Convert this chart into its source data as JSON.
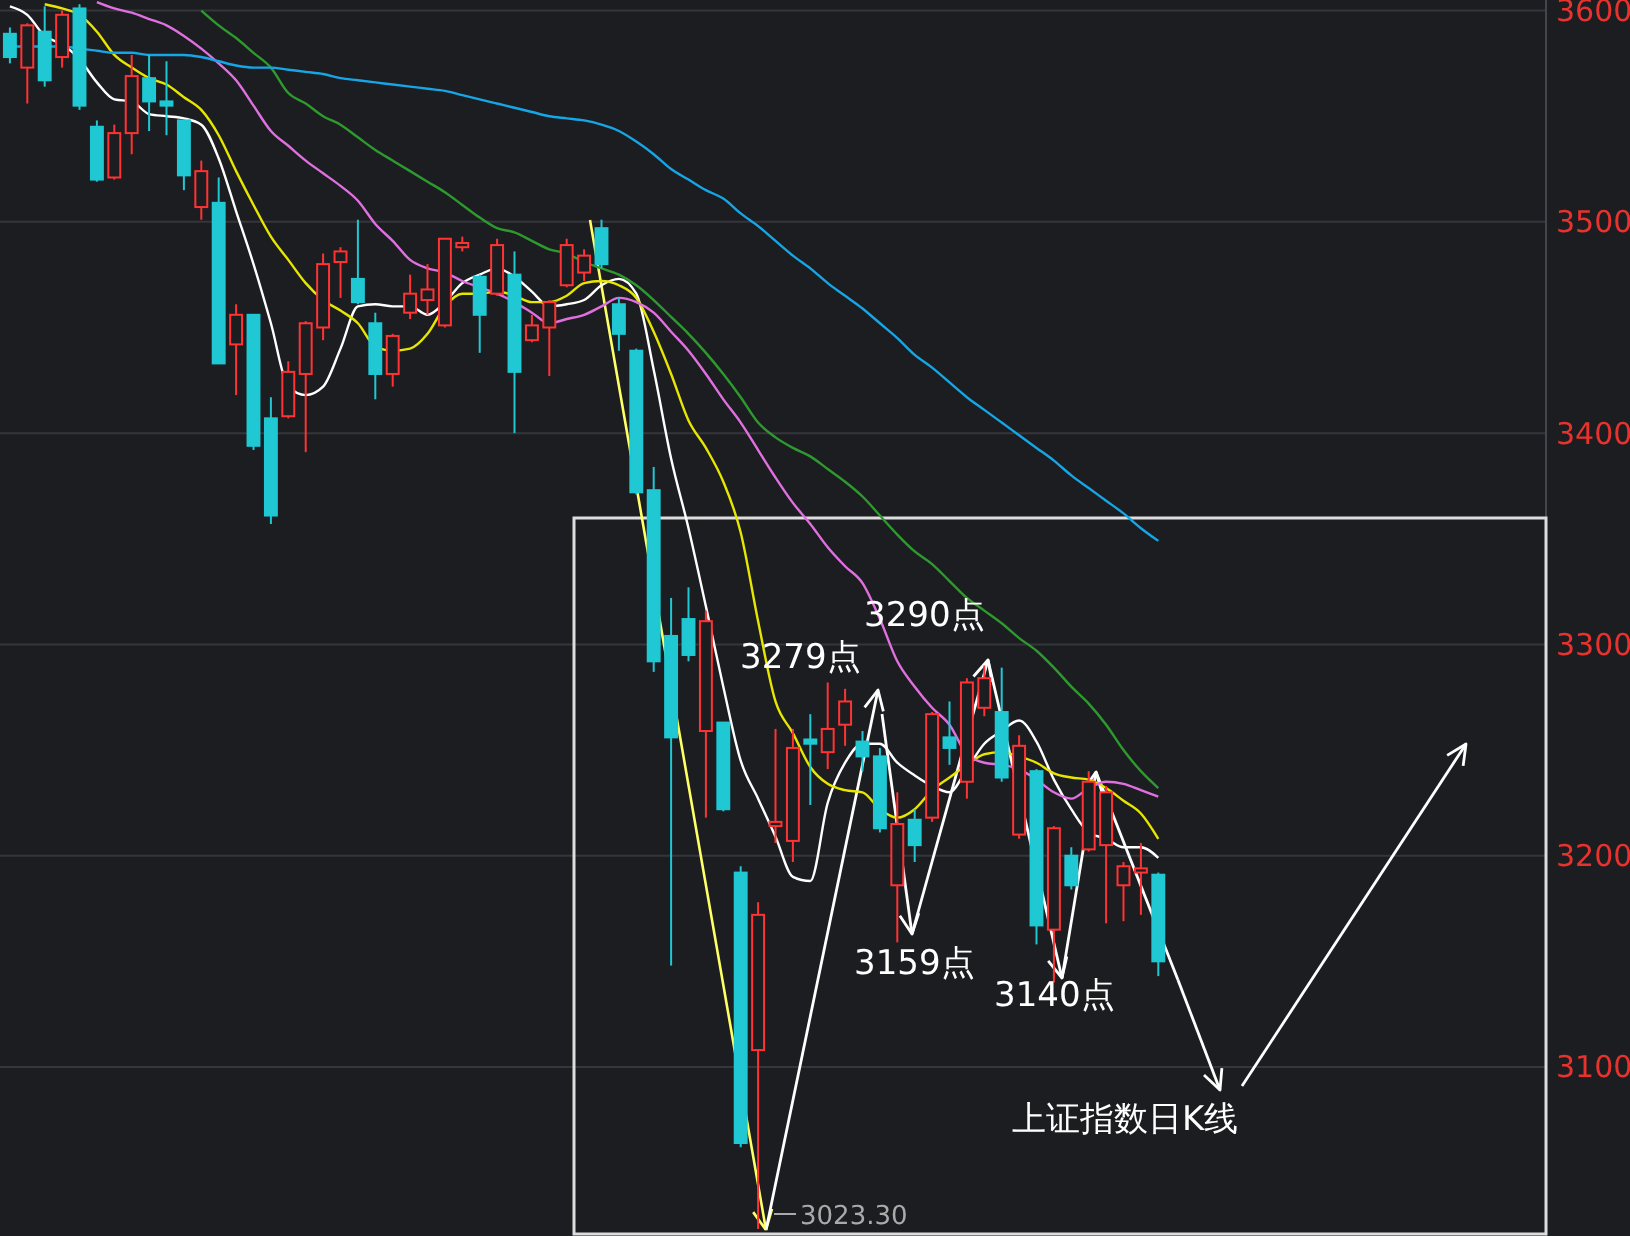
{
  "chart_data": {
    "type": "candlestick",
    "categories": [
      null,
      null,
      null,
      null,
      null,
      null,
      null,
      null,
      null,
      null,
      null,
      null,
      null,
      null,
      null,
      null,
      null,
      null,
      null,
      null,
      null,
      null,
      null,
      null,
      null,
      null,
      null,
      null,
      null,
      null,
      null,
      null,
      null,
      null,
      null,
      null,
      null,
      null,
      null,
      null,
      null,
      null,
      null,
      null,
      null,
      null,
      null,
      null,
      null,
      null,
      null,
      null,
      null,
      null,
      null,
      null,
      null,
      null,
      null,
      null,
      null,
      null,
      null,
      null,
      null,
      null,
      null
    ],
    "ohlc": [
      [
        3589,
        3592,
        3575,
        3578
      ],
      [
        3573,
        3594,
        3556,
        3593
      ],
      [
        3590,
        3602,
        3564,
        3567
      ],
      [
        3578,
        3600,
        3573,
        3598
      ],
      [
        3601,
        3603,
        3553,
        3555
      ],
      [
        3545,
        3548,
        3519,
        3520
      ],
      [
        3521,
        3546,
        3520,
        3542
      ],
      [
        3542,
        3579,
        3532,
        3569
      ],
      [
        3568,
        3579,
        3543,
        3557
      ],
      [
        3557,
        3576,
        3541,
        3555
      ],
      [
        3548,
        3548,
        3515,
        3522
      ],
      [
        3507,
        3529,
        3501,
        3524
      ],
      [
        3509,
        3521,
        3433,
        3433
      ],
      [
        3442,
        3461,
        3418,
        3456
      ],
      [
        3456,
        3456,
        3392,
        3394
      ],
      [
        3407,
        3417,
        3357,
        3361
      ],
      [
        3408,
        3434,
        3407,
        3429
      ],
      [
        3428,
        3453,
        3391,
        3452
      ],
      [
        3450,
        3485,
        3444,
        3480
      ],
      [
        3481,
        3488,
        3464,
        3486
      ],
      [
        3473,
        3501,
        3461,
        3462
      ],
      [
        3452,
        3457,
        3416,
        3428
      ],
      [
        3428,
        3447,
        3422,
        3446
      ],
      [
        3457,
        3475,
        3454,
        3466
      ],
      [
        3463,
        3480,
        3456,
        3468
      ],
      [
        3451,
        3492,
        3450,
        3492
      ],
      [
        3488,
        3493,
        3486,
        3490
      ],
      [
        3474,
        3475,
        3438,
        3456
      ],
      [
        3466,
        3492,
        3465,
        3489
      ],
      [
        3475,
        3486,
        3400,
        3429
      ],
      [
        3444,
        3456,
        3443,
        3451
      ],
      [
        3450,
        3463,
        3427,
        3462
      ],
      [
        3470,
        3492,
        3469,
        3489
      ],
      [
        3476,
        3487,
        3472,
        3484
      ],
      [
        3497,
        3501,
        3478,
        3480
      ],
      [
        3461,
        3464,
        3439,
        3447
      ],
      [
        3439,
        3440,
        3371,
        3372
      ],
      [
        3373,
        3384,
        3287,
        3292
      ],
      [
        3304,
        3322,
        3148,
        3256
      ],
      [
        3312,
        3327,
        3292,
        3295
      ],
      [
        3259,
        3316,
        3218,
        3311
      ],
      [
        3263,
        3263,
        3221,
        3222
      ],
      [
        3192,
        3195,
        3062,
        3064
      ],
      [
        3108,
        3178,
        3023.3,
        3172
      ],
      [
        3214,
        3260,
        3206,
        3216
      ],
      [
        3207,
        3260,
        3197,
        3251
      ],
      [
        3255,
        3267,
        3224,
        3253
      ],
      [
        3249,
        3282,
        3241,
        3260
      ],
      [
        3262,
        3279,
        3252,
        3273
      ],
      [
        3254,
        3259,
        3240,
        3247
      ],
      [
        3247,
        3251,
        3211,
        3213
      ],
      [
        3186,
        3230,
        3159,
        3215
      ],
      [
        3217,
        3222,
        3197,
        3205
      ],
      [
        3218,
        3268,
        3216,
        3267
      ],
      [
        3256,
        3273,
        3243,
        3251
      ],
      [
        3235,
        3284,
        3227,
        3282
      ],
      [
        3270,
        3290,
        3266,
        3284
      ],
      [
        3268,
        3289,
        3235,
        3237
      ],
      [
        3210,
        3257,
        3208,
        3252
      ],
      [
        3240,
        3241,
        3158,
        3167
      ],
      [
        3165,
        3214,
        3140,
        3213
      ],
      [
        3200,
        3204,
        3184,
        3186
      ],
      [
        3203,
        3240,
        3202,
        3235
      ],
      [
        3205,
        3233,
        3168,
        3230
      ],
      [
        3186,
        3197,
        3169,
        3195
      ],
      [
        3192,
        3206,
        3172,
        3194
      ],
      [
        3191,
        3192,
        3143,
        3150
      ]
    ],
    "colors": [
      "#1fc8d3",
      "#ff3333",
      "#1fc8d3",
      "#ff3333",
      "#1fc8d3",
      "#1fc8d3",
      "#ff3333",
      "#ff3333",
      "#1fc8d3",
      "#1fc8d3",
      "#1fc8d3",
      "#ff3333",
      "#1fc8d3",
      "#ff3333",
      "#1fc8d3",
      "#1fc8d3",
      "#ff3333",
      "#ff3333",
      "#ff3333",
      "#ff3333",
      "#1fc8d3",
      "#1fc8d3",
      "#ff3333",
      "#ff3333",
      "#ff3333",
      "#ff3333",
      "#ff3333",
      "#1fc8d3",
      "#ff3333",
      "#1fc8d3",
      "#ff3333",
      "#ff3333",
      "#ff3333",
      "#ff3333",
      "#1fc8d3",
      "#1fc8d3",
      "#1fc8d3",
      "#1fc8d3",
      "#1fc8d3",
      "#1fc8d3",
      "#ff3333",
      "#1fc8d3",
      "#1fc8d3",
      "#ff3333",
      "#ff3333",
      "#ff3333",
      "#1fc8d3",
      "#ff3333",
      "#ff3333",
      "#1fc8d3",
      "#1fc8d3",
      "#ff3333",
      "#1fc8d3",
      "#ff3333",
      "#1fc8d3",
      "#ff3333",
      "#ff3333",
      "#1fc8d3",
      "#ff3333",
      "#1fc8d3",
      "#ff3333",
      "#1fc8d3",
      "#ff3333",
      "#ff3333",
      "#ff3333",
      "#ff3333",
      "#1fc8d3"
    ],
    "series": [
      {
        "type": "line",
        "color": "#ffffff",
        "values": [
          3602,
          3598,
          3588,
          3584,
          3577,
          3566,
          3558,
          3557,
          3551,
          3550,
          3549,
          3546,
          3530,
          3505,
          3480,
          3452,
          3422,
          3418,
          3422,
          3440,
          3460,
          3461,
          3460,
          3460,
          3456,
          3462,
          3471,
          3475,
          3478,
          3474,
          3467,
          3460,
          3461,
          3463,
          3470,
          3473,
          3466,
          3430,
          3388,
          3355,
          3318,
          3280,
          3245,
          3227,
          3209,
          3190,
          3188,
          3225,
          3244,
          3253,
          3253,
          3244,
          3238,
          3233,
          3230,
          3241,
          3253,
          3259,
          3264,
          3254,
          3236,
          3222,
          3211,
          3208,
          3204,
          3204,
          3199
        ]
      },
      {
        "type": "line",
        "color": "#e6e600",
        "values": [
          null,
          null,
          3603,
          3601,
          3598,
          3590,
          3579,
          3573,
          3568,
          3565,
          3559,
          3553,
          3541,
          3524,
          3508,
          3493,
          3482,
          3471,
          3463,
          3458,
          3452,
          3441,
          3439,
          3440,
          3447,
          3460,
          3466,
          3466,
          3467,
          3465,
          3462,
          3462,
          3465,
          3471,
          3472,
          3470,
          3464,
          3448,
          3428,
          3406,
          3393,
          3377,
          3353,
          3311,
          3273,
          3258,
          3242,
          3234,
          3231,
          3230,
          3222,
          3218,
          3222,
          3231,
          3237,
          3243,
          3248,
          3249,
          3247,
          3244,
          3239,
          3237,
          3236,
          3232,
          3226,
          3220,
          3208
        ]
      },
      {
        "type": "line",
        "color": "#e070e0",
        "values": [
          null,
          null,
          null,
          null,
          null,
          3604,
          3601,
          3599,
          3596,
          3593,
          3588,
          3582,
          3575,
          3567,
          3555,
          3543,
          3536,
          3529,
          3523,
          3517,
          3510,
          3499,
          3491,
          3482,
          3478,
          3476,
          3472,
          3469,
          3466,
          3462,
          3457,
          3452,
          3454,
          3456,
          3460,
          3464,
          3462,
          3457,
          3448,
          3439,
          3428,
          3416,
          3405,
          3392,
          3379,
          3367,
          3357,
          3346,
          3337,
          3329,
          3312,
          3292,
          3280,
          3270,
          3262,
          3248,
          3244,
          3243,
          3241,
          3236,
          3230,
          3227,
          3232,
          3235,
          3234,
          3231,
          3228
        ]
      },
      {
        "type": "line",
        "color": "#2e9a2e",
        "values": [
          null,
          null,
          null,
          null,
          null,
          null,
          null,
          null,
          null,
          null,
          null,
          3600,
          3593,
          3587,
          3580,
          3573,
          3561,
          3556,
          3550,
          3546,
          3540,
          3534,
          3529,
          3524,
          3519,
          3514,
          3508,
          3502,
          3497,
          3495,
          3491,
          3487,
          3485,
          3481,
          3478,
          3475,
          3470,
          3463,
          3455,
          3447,
          3438,
          3428,
          3417,
          3405,
          3398,
          3393,
          3389,
          3383,
          3377,
          3370,
          3361,
          3352,
          3344,
          3338,
          3330,
          3322,
          3316,
          3310,
          3303,
          3297,
          3289,
          3280,
          3272,
          3262,
          3250,
          3240,
          3232
        ]
      },
      {
        "type": "line",
        "color": "#16a6e6",
        "values": [
          3583,
          3583,
          3583,
          3583,
          3582,
          3581,
          3580,
          3580,
          3579,
          3579,
          3579,
          3578,
          3576,
          3574,
          3573,
          3573,
          3572,
          3571,
          3570,
          3568,
          3567,
          3566,
          3565,
          3564,
          3563,
          3562,
          3560,
          3558,
          3556,
          3554,
          3552,
          3550,
          3549,
          3548,
          3546,
          3543,
          3538,
          3532,
          3525,
          3520,
          3515,
          3511,
          3504,
          3498,
          3491,
          3484,
          3478,
          3471,
          3465,
          3459,
          3452,
          3445,
          3437,
          3431,
          3424,
          3417,
          3411,
          3405,
          3399,
          3393,
          3387,
          3380,
          3374,
          3368,
          3362,
          3355,
          3349
        ]
      }
    ],
    "ylim": [
      3020,
      3605
    ],
    "yticks": [
      3100,
      3200,
      3300,
      3400,
      3500,
      3600
    ],
    "grid": "y",
    "tick_labels": "y",
    "annotations": [
      "3279点",
      "3290点",
      "3159点",
      "3140点",
      "上证指数日K线",
      "3023.30"
    ]
  }
}
